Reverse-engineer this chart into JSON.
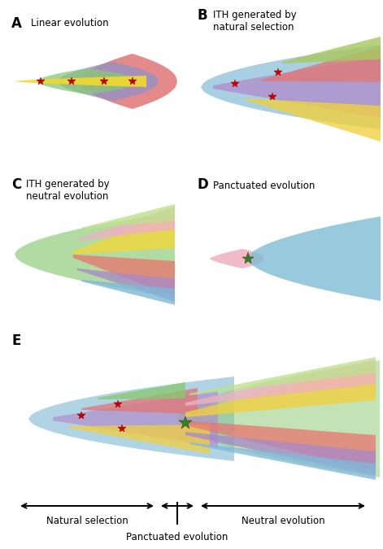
{
  "background": "#ffffff",
  "panels": {
    "A": {
      "label": "A",
      "title": "Linear evolution"
    },
    "B": {
      "label": "B",
      "title": "ITH generated by\nnatural selection"
    },
    "C": {
      "label": "C",
      "title": "ITH generated by\nneutral evolution"
    },
    "D": {
      "label": "D",
      "title": "Panctuated evolution"
    },
    "E": {
      "label": "E",
      "title": ""
    }
  },
  "bottom_text": {
    "natural": "Natural selection",
    "neutral": "Neutral evolution",
    "panctuated": "Panctuated evolution"
  }
}
